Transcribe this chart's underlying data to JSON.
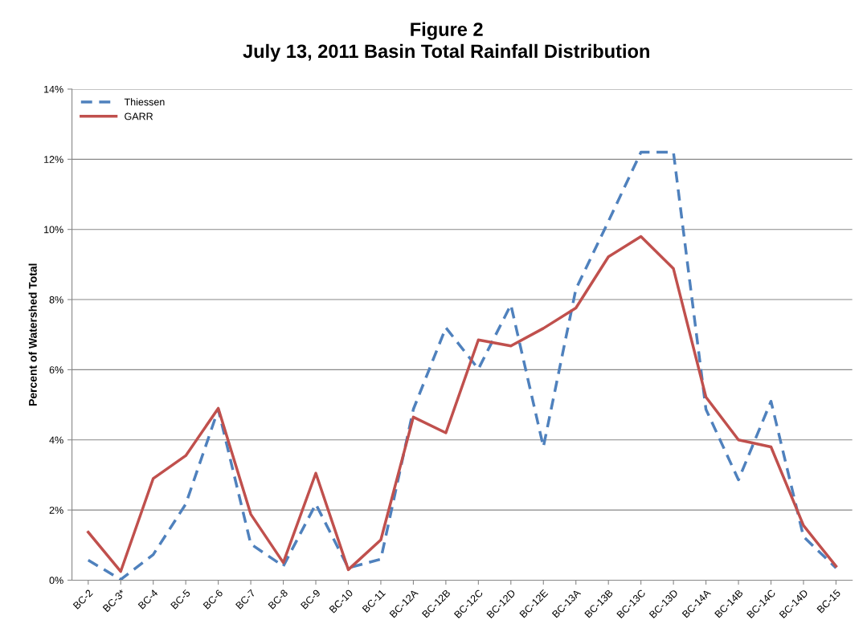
{
  "chart_data": {
    "type": "line",
    "title": "Figure 2\nJuly 13, 2011 Basin Total Rainfall Distribution",
    "ylabel": "Percent of Watershed Total",
    "categories": [
      "BC-2",
      "BC-3*",
      "BC-4",
      "BC-5",
      "BC-6",
      "BC-7",
      "BC-8",
      "BC-9",
      "BC-10",
      "BC-11",
      "BC-12A",
      "BC-12B",
      "BC-12C",
      "BC-12D",
      "BC-12E",
      "BC-13A",
      "BC-13B",
      "BC-13C",
      "BC-13D",
      "BC-14A",
      "BC-14B",
      "BC-14C",
      "BC-14D",
      "BC-15"
    ],
    "series": [
      {
        "name": "Thiessen",
        "color": "#4f81bd",
        "line_style": "dashed",
        "values": [
          0.57,
          0.02,
          0.73,
          2.17,
          4.87,
          1.03,
          0.4,
          2.17,
          0.35,
          0.6,
          4.87,
          7.2,
          6.02,
          7.85,
          3.8,
          8.3,
          10.23,
          12.2,
          12.2,
          4.87,
          2.86,
          5.1,
          1.24,
          0.35
        ]
      },
      {
        "name": "GARR",
        "color": "#c0504d",
        "line_style": "solid",
        "values": [
          1.37,
          0.25,
          2.9,
          3.55,
          4.9,
          1.88,
          0.5,
          3.05,
          0.3,
          1.15,
          4.65,
          4.2,
          6.85,
          6.68,
          7.18,
          7.76,
          9.22,
          9.8,
          8.88,
          5.22,
          4.0,
          3.8,
          1.56,
          0.4
        ]
      }
    ],
    "ylim": [
      0,
      14
    ],
    "yticks": [
      {
        "value": 0,
        "label": "0%"
      },
      {
        "value": 2,
        "label": "2%"
      },
      {
        "value": 4,
        "label": "4%"
      },
      {
        "value": 6,
        "label": "6%"
      },
      {
        "value": 8,
        "label": "8%"
      },
      {
        "value": 10,
        "label": "10%"
      },
      {
        "value": 12,
        "label": "12%"
      },
      {
        "value": 14,
        "label": "14%"
      }
    ],
    "grid": "y",
    "legend": "top left",
    "marker": "none"
  }
}
